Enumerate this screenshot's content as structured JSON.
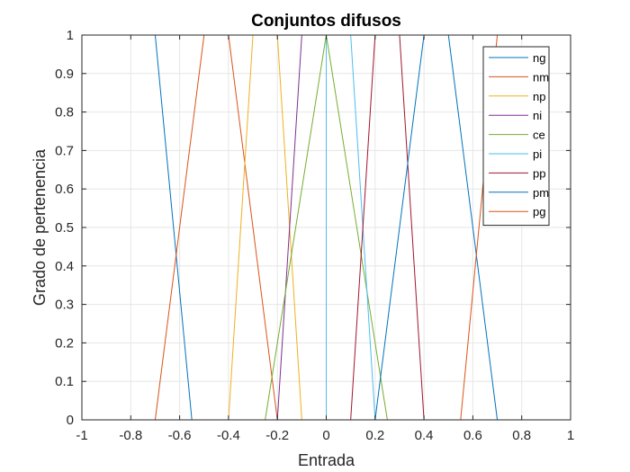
{
  "chart_data": {
    "type": "line",
    "title": "Conjuntos difusos",
    "xlabel": "Entrada",
    "ylabel": "Grado de pertenencia",
    "xlim": [
      -1,
      1
    ],
    "ylim": [
      0,
      1
    ],
    "xticks": [
      "-1",
      "-0.8",
      "-0.6",
      "-0.4",
      "-0.2",
      "0",
      "0.2",
      "0.4",
      "0.6",
      "0.8",
      "1"
    ],
    "yticks": [
      "0",
      "0.1",
      "0.2",
      "0.3",
      "0.4",
      "0.5",
      "0.6",
      "0.7",
      "0.8",
      "0.9",
      "1"
    ],
    "grid": true,
    "legend_position": "top-right",
    "series": [
      {
        "name": "ng",
        "color": "#0072BD",
        "x": [
          -1,
          -0.7,
          -0.55,
          1
        ],
        "y": [
          1,
          1,
          0,
          0
        ]
      },
      {
        "name": "nm",
        "color": "#D95319",
        "x": [
          -1,
          -0.7,
          -0.5,
          -0.4,
          -0.2,
          1
        ],
        "y": [
          0,
          0,
          1,
          1,
          0,
          0
        ]
      },
      {
        "name": "np",
        "color": "#EDB120",
        "x": [
          -1,
          -0.4,
          -0.3,
          -0.2,
          -0.1,
          1
        ],
        "y": [
          0,
          0,
          1,
          1,
          0,
          0
        ]
      },
      {
        "name": "ni",
        "color": "#7E2F8E",
        "x": [
          -1,
          -0.2,
          -0.1,
          0,
          0,
          1
        ],
        "y": [
          0,
          0,
          1,
          1,
          0,
          0
        ]
      },
      {
        "name": "ce",
        "color": "#77AC30",
        "x": [
          -1,
          -0.25,
          0,
          0.25,
          1
        ],
        "y": [
          0,
          0,
          1,
          0,
          0
        ]
      },
      {
        "name": "pi",
        "color": "#4DBEEE",
        "x": [
          -1,
          0,
          0,
          0.1,
          0.2,
          1
        ],
        "y": [
          0,
          0,
          1,
          1,
          0,
          0
        ]
      },
      {
        "name": "pp",
        "color": "#A2142F",
        "x": [
          -1,
          0.1,
          0.2,
          0.3,
          0.4,
          1
        ],
        "y": [
          0,
          0,
          1,
          1,
          0,
          0
        ]
      },
      {
        "name": "pm",
        "color": "#0072BD",
        "x": [
          -1,
          0.2,
          0.4,
          0.5,
          0.7,
          1
        ],
        "y": [
          0,
          0,
          1,
          1,
          0,
          0
        ]
      },
      {
        "name": "pg",
        "color": "#D95319",
        "x": [
          -1,
          0.55,
          0.7,
          1
        ],
        "y": [
          0,
          0,
          1,
          1
        ]
      }
    ]
  }
}
